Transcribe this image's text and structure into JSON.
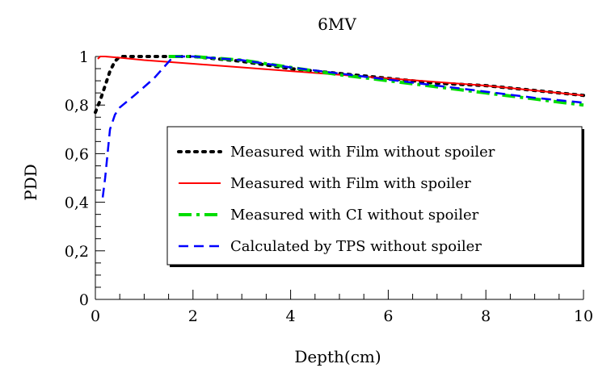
{
  "chart_data": {
    "type": "line",
    "title": "6MV",
    "xlabel": "Depth(cm)",
    "ylabel": "PDD",
    "xlim": [
      0,
      10
    ],
    "ylim": [
      0,
      1
    ],
    "x_ticks": [
      "0",
      "2",
      "4",
      "6",
      "8",
      "10"
    ],
    "y_ticks": [
      "0",
      "0,2",
      "0,4",
      "0,6",
      "0,8",
      "1"
    ],
    "legend_position": "center-right",
    "grid": false,
    "series": [
      {
        "name": "Measured with Film without spoiler",
        "color": "#000000",
        "dash": "dotted",
        "x": [
          0,
          0.1,
          0.2,
          0.3,
          0.4,
          0.5,
          0.7,
          1.0,
          1.5,
          2,
          3,
          4,
          5,
          6,
          7,
          8,
          9,
          10
        ],
        "y": [
          0.77,
          0.82,
          0.88,
          0.94,
          0.98,
          1.0,
          1.0,
          1.0,
          1.0,
          1.0,
          0.98,
          0.95,
          0.93,
          0.91,
          0.89,
          0.88,
          0.86,
          0.84
        ]
      },
      {
        "name": "Measured with Film with spoiler",
        "color": "#ff0000",
        "dash": "solid",
        "x": [
          0.05,
          0.1,
          0.2,
          0.5,
          1,
          2,
          3,
          4,
          5,
          6,
          7,
          8,
          9,
          10
        ],
        "y": [
          0.99,
          1.0,
          1.0,
          0.995,
          0.985,
          0.97,
          0.955,
          0.94,
          0.925,
          0.91,
          0.895,
          0.88,
          0.86,
          0.84
        ]
      },
      {
        "name": "Measured with CI without spoiler",
        "color": "#00dd00",
        "dash": "dashdot",
        "x": [
          1.5,
          2,
          3,
          4,
          5,
          6,
          7,
          8,
          9,
          10
        ],
        "y": [
          1.0,
          1.0,
          0.985,
          0.955,
          0.925,
          0.9,
          0.875,
          0.85,
          0.825,
          0.8
        ]
      },
      {
        "name": "Calculated by TPS without spoiler",
        "color": "#0000ff",
        "dash": "dashed",
        "x": [
          0.15,
          0.2,
          0.25,
          0.3,
          0.4,
          0.5,
          0.8,
          1.2,
          1.6,
          2,
          3,
          4,
          5,
          6,
          7,
          8,
          9,
          10
        ],
        "y": [
          0.42,
          0.5,
          0.6,
          0.7,
          0.76,
          0.79,
          0.84,
          0.91,
          1.0,
          1.0,
          0.985,
          0.955,
          0.93,
          0.905,
          0.88,
          0.855,
          0.83,
          0.81
        ]
      }
    ]
  }
}
